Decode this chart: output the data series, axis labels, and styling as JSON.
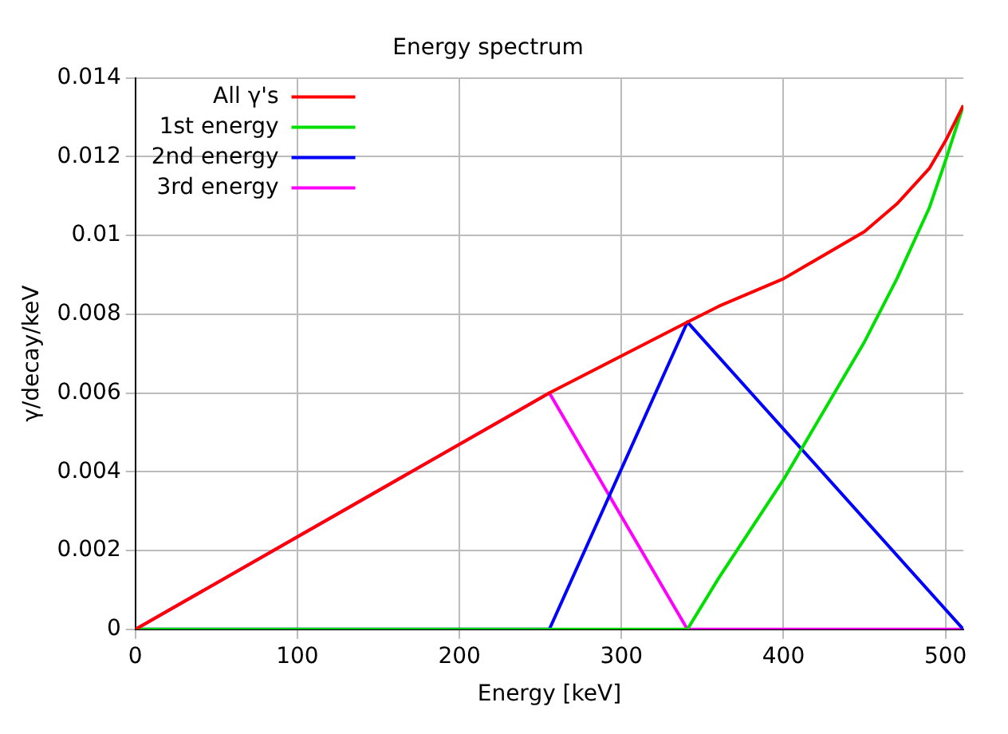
{
  "chart_data": {
    "type": "line",
    "title": "Energy spectrum",
    "xlabel": "Energy [keV]",
    "ylabel": "γ/decay/keV",
    "xlim": [
      0,
      511
    ],
    "xticks": [
      0,
      100,
      200,
      300,
      400,
      500
    ],
    "ylim": [
      0,
      0.014
    ],
    "yticks": [
      0,
      0.002,
      0.004,
      0.006,
      0.008,
      0.01,
      0.012,
      0.014
    ],
    "grid": true,
    "legend": "top left",
    "marker": "none",
    "line_style": "solid",
    "series": [
      {
        "name": "All γ's",
        "color": "#ff0000",
        "x": [
          0,
          255.5,
          340.7,
          360,
          400,
          450,
          470,
          490,
          500,
          511
        ],
        "values": [
          0,
          0.006,
          0.0078,
          0.0082,
          0.0089,
          0.0101,
          0.0108,
          0.0117,
          0.0124,
          0.0133
        ]
      },
      {
        "name": "1st energy",
        "color": "#00e000",
        "x": [
          0,
          340.7,
          360,
          400,
          450,
          470,
          490,
          500,
          511
        ],
        "values": [
          0,
          0,
          0.0013,
          0.0038,
          0.0073,
          0.0089,
          0.0107,
          0.0119,
          0.0133
        ]
      },
      {
        "name": "2nd energy",
        "color": "#0000ff",
        "x": [
          0,
          255.5,
          340.7,
          511
        ],
        "values": [
          0,
          0,
          0.0078,
          0
        ]
      },
      {
        "name": "3rd energy",
        "color": "#ff00ff",
        "x": [
          0,
          255.5,
          340.7,
          511
        ],
        "values": [
          0,
          0.006,
          0,
          0
        ]
      }
    ]
  }
}
